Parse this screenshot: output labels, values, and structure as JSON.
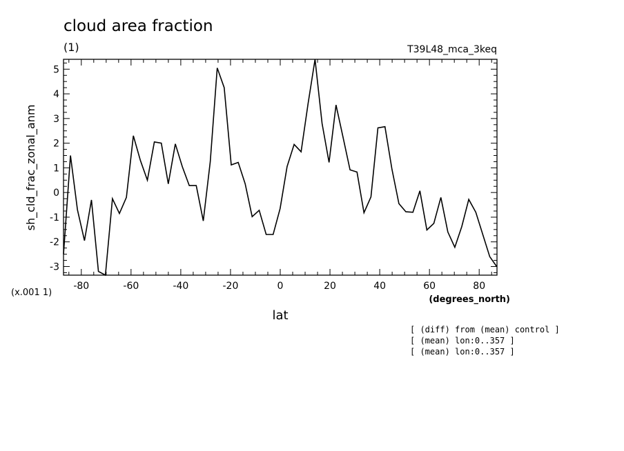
{
  "chart_data": {
    "type": "line",
    "title": "cloud area fraction",
    "units": "(1)",
    "dataset": "T39L48_mca_3keq",
    "ylabel": "sh_cld_frac_zonal_anm",
    "yscale_note": "(x.001 1)",
    "xlabel": "lat",
    "xunits": "(degrees_north)",
    "notes": [
      "[ (diff) from (mean) control ]",
      "[ (mean) lon:0..357 ]",
      "[ (mean) lon:0..357 ]"
    ],
    "xlim": [
      -87.16,
      87.16
    ],
    "ylim": [
      -3.35,
      5.4
    ],
    "xticks": [
      -80,
      -60,
      -40,
      -20,
      0,
      20,
      40,
      60,
      80
    ],
    "xtick_labels": [
      "-80",
      "-60",
      "-40",
      "-20",
      "0",
      "20",
      "40",
      "60",
      "80"
    ],
    "yticks": [
      -3,
      -2,
      -1,
      0,
      1,
      2,
      3,
      4,
      5
    ],
    "ytick_labels": [
      "-3",
      "-2",
      "-1",
      "0",
      "1",
      "2",
      "3",
      "4",
      "5"
    ],
    "grid": false,
    "series": [
      {
        "x": [
          -87.16,
          -84.35,
          -81.54,
          -78.73,
          -75.92,
          -73.11,
          -70.3,
          -67.49,
          -64.68,
          -61.87,
          -59.06,
          -56.25,
          -53.44,
          -50.63,
          -47.82,
          -45.01,
          -42.2,
          -39.39,
          -36.58,
          -33.77,
          -30.96,
          -28.15,
          -25.34,
          -22.53,
          -19.72,
          -16.91,
          -14.1,
          -11.29,
          -8.48,
          -5.67,
          -2.86,
          -0.05,
          2.76,
          5.57,
          8.38,
          11.19,
          14.0,
          16.81,
          19.62,
          22.43,
          25.24,
          28.05,
          30.86,
          33.67,
          36.48,
          39.29,
          42.1,
          44.91,
          47.72,
          50.53,
          53.34,
          56.15,
          58.96,
          61.77,
          64.58,
          67.39,
          70.2,
          73.01,
          75.82,
          78.63,
          81.44,
          84.25,
          87.06
        ],
        "y": [
          -2.5,
          1.5,
          -0.7,
          -1.95,
          -0.3,
          -3.2,
          -3.35,
          -0.25,
          -0.85,
          -0.2,
          2.3,
          1.3,
          0.5,
          2.05,
          2.0,
          0.35,
          1.97,
          1.05,
          0.28,
          0.28,
          -1.15,
          1.25,
          5.05,
          4.25,
          1.12,
          1.22,
          0.35,
          -0.98,
          -0.72,
          -1.7,
          -1.7,
          -0.65,
          1.05,
          1.95,
          1.65,
          3.6,
          5.4,
          2.8,
          1.22,
          3.55,
          2.25,
          0.92,
          0.83,
          -0.82,
          -0.18,
          2.62,
          2.67,
          0.95,
          -0.45,
          -0.78,
          -0.8,
          0.07,
          -1.52,
          -1.25,
          -0.2,
          -1.6,
          -2.22,
          -1.38,
          -0.28,
          -0.8,
          -1.7,
          -2.6,
          -3.0
        ]
      }
    ]
  }
}
